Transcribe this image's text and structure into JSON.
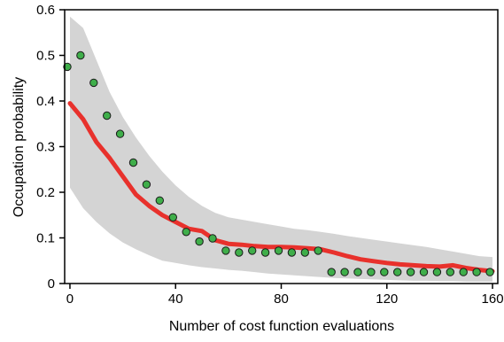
{
  "chart_data": {
    "type": "scatter",
    "title": "",
    "xlabel": "Number of cost function evaluations",
    "ylabel": "Occupation probability",
    "xlim": [
      -2,
      162
    ],
    "ylim": [
      0,
      0.6
    ],
    "xticks": [
      0,
      40,
      80,
      120,
      160
    ],
    "yticks": [
      0,
      0.1,
      0.2,
      0.3,
      0.4,
      0.5,
      0.6
    ],
    "xtick_labels": [
      "0",
      "40",
      "80",
      "120",
      "160"
    ],
    "ytick_labels": [
      "0",
      "0.1",
      "0.2",
      "0.3",
      "0.4",
      "0.5",
      "0.6"
    ],
    "grid": false,
    "legend": "none",
    "colors": {
      "band": "#d4d4d4",
      "line": "#e8312c",
      "points": "#3fae4a",
      "point_edge": "#1a1a1a",
      "axis": "#000000"
    },
    "series": [
      {
        "kind": "band",
        "x": [
          0,
          5,
          10,
          15,
          20,
          25,
          30,
          35,
          40,
          45,
          50,
          55,
          60,
          65,
          70,
          75,
          80,
          85,
          90,
          95,
          100,
          105,
          110,
          115,
          120,
          125,
          130,
          135,
          140,
          145,
          150,
          155,
          160
        ],
        "upper": [
          0.585,
          0.56,
          0.49,
          0.42,
          0.365,
          0.32,
          0.28,
          0.245,
          0.215,
          0.19,
          0.17,
          0.155,
          0.145,
          0.14,
          0.135,
          0.13,
          0.125,
          0.12,
          0.117,
          0.113,
          0.109,
          0.104,
          0.1,
          0.096,
          0.092,
          0.088,
          0.084,
          0.08,
          0.075,
          0.07,
          0.065,
          0.06,
          0.058
        ],
        "lower": [
          0.21,
          0.165,
          0.135,
          0.11,
          0.09,
          0.075,
          0.062,
          0.05,
          0.045,
          0.04,
          0.036,
          0.033,
          0.03,
          0.028,
          0.025,
          0.022,
          0.02,
          0.018,
          0.016,
          0.014,
          0.012,
          0.011,
          0.01,
          0.009,
          0.008,
          0.007,
          0.006,
          0.006,
          0.005,
          0.005,
          0.004,
          0.004,
          0.004
        ]
      },
      {
        "kind": "line",
        "x": [
          0,
          5,
          10,
          15,
          20,
          25,
          30,
          35,
          40,
          45,
          50,
          55,
          60,
          65,
          70,
          75,
          80,
          85,
          90,
          95,
          100,
          105,
          110,
          115,
          120,
          125,
          130,
          135,
          140,
          145,
          150,
          155,
          160
        ],
        "y": [
          0.395,
          0.36,
          0.31,
          0.275,
          0.235,
          0.195,
          0.17,
          0.15,
          0.135,
          0.12,
          0.115,
          0.095,
          0.087,
          0.085,
          0.082,
          0.08,
          0.08,
          0.079,
          0.077,
          0.075,
          0.068,
          0.06,
          0.053,
          0.049,
          0.045,
          0.042,
          0.04,
          0.038,
          0.037,
          0.04,
          0.034,
          0.03,
          0.027
        ]
      },
      {
        "kind": "points",
        "x": [
          -1,
          4,
          9,
          14,
          19,
          24,
          29,
          34,
          39,
          44,
          49,
          54,
          59,
          64,
          69,
          74,
          79,
          84,
          89,
          94,
          99,
          104,
          109,
          114,
          119,
          124,
          129,
          134,
          139,
          144,
          149,
          154,
          159
        ],
        "y": [
          0.475,
          0.5,
          0.44,
          0.368,
          0.328,
          0.265,
          0.217,
          0.182,
          0.145,
          0.113,
          0.092,
          0.099,
          0.072,
          0.068,
          0.072,
          0.068,
          0.072,
          0.068,
          0.068,
          0.072,
          0.025,
          0.025,
          0.025,
          0.025,
          0.025,
          0.025,
          0.025,
          0.025,
          0.025,
          0.025,
          0.025,
          0.025,
          0.025
        ]
      }
    ]
  }
}
